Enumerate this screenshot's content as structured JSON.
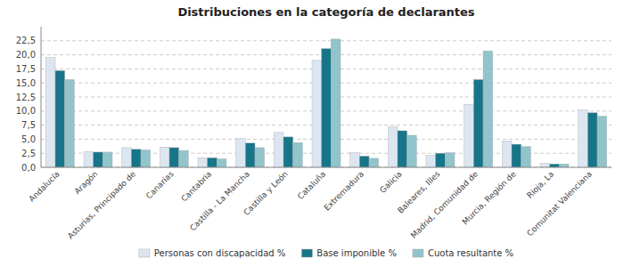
{
  "chart_data": {
    "type": "bar",
    "title": "Distribuciones en la categoría de declarantes",
    "categories": [
      "Andalucía",
      "Aragón",
      "Asturias, Principado de",
      "Canarias",
      "Cantabria",
      "Castilla - La Mancha",
      "Castilla y León",
      "Cataluña",
      "Extremadura",
      "Galicia",
      "Baleares, Illes",
      "Madrid, Comunidad de",
      "Murcia, Región de",
      "Rioja, La",
      "Comunitat Valenciana"
    ],
    "series": [
      {
        "name": "Personas con discapacidad %",
        "color": "#dce6f1",
        "values": [
          19.5,
          2.8,
          3.5,
          3.6,
          1.7,
          5.1,
          6.2,
          19.0,
          2.6,
          7.2,
          2.1,
          11.2,
          4.7,
          0.7,
          10.2
        ]
      },
      {
        "name": "Base imponible %",
        "color": "#17758a",
        "values": [
          17.2,
          2.7,
          3.2,
          3.5,
          1.7,
          4.3,
          5.4,
          21.1,
          2.0,
          6.5,
          2.5,
          15.6,
          4.1,
          0.6,
          9.7
        ]
      },
      {
        "name": "Cuota resultante %",
        "color": "#92c4cc",
        "values": [
          15.6,
          2.7,
          3.1,
          3.0,
          1.5,
          3.5,
          4.4,
          22.8,
          1.6,
          5.7,
          2.6,
          20.7,
          3.7,
          0.6,
          9.1
        ]
      }
    ],
    "ylim": [
      0,
      25
    ],
    "yticks": [
      {
        "value": 0.0,
        "label": "0,0"
      },
      {
        "value": 2.5,
        "label": "2,5"
      },
      {
        "value": 5.0,
        "label": "5,0"
      },
      {
        "value": 7.5,
        "label": "7,5"
      },
      {
        "value": 10.0,
        "label": "10,0"
      },
      {
        "value": 12.5,
        "label": "12,5"
      },
      {
        "value": 15.0,
        "label": "15,0"
      },
      {
        "value": 17.5,
        "label": "17,5"
      },
      {
        "value": 20.0,
        "label": "20,0"
      },
      {
        "value": 22.5,
        "label": "22,5"
      }
    ],
    "grid": true,
    "legend": "bottom"
  }
}
